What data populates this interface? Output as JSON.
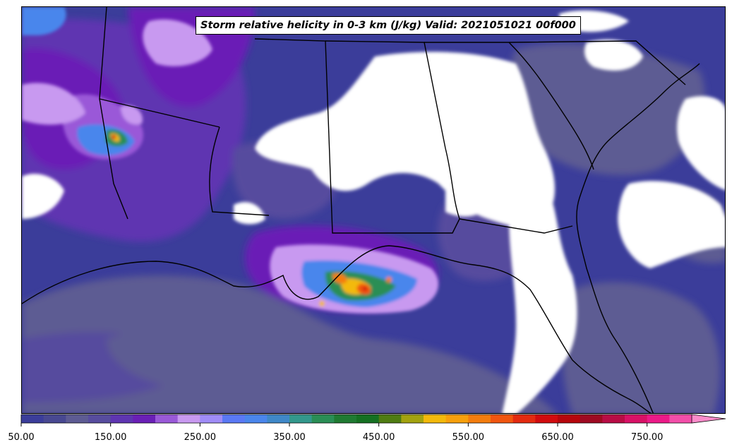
{
  "title": "Storm relative helicity in 0-3 km (J/kg) Valid: 2021051021 00f000",
  "colorbar": {
    "min": 50,
    "max": 800,
    "step": 25,
    "extend": "max",
    "tick_labels": [
      "50.00",
      "150.00",
      "250.00",
      "350.00",
      "450.00",
      "550.00",
      "650.00",
      "750.00"
    ],
    "tick_values": [
      50,
      150,
      250,
      350,
      450,
      550,
      650,
      750
    ],
    "colors": [
      "#3b3d9a",
      "#484891",
      "#5d5b93",
      "#574c9e",
      "#5e35b1",
      "#6a1fb6",
      "#9a59d8",
      "#c899f0",
      "#a08cf7",
      "#5a79f5",
      "#4a86ec",
      "#3f88c8",
      "#33988c",
      "#2a8e55",
      "#1f7a32",
      "#157022",
      "#4f7c12",
      "#a3a30f",
      "#f3b90b",
      "#f7a00c",
      "#f47d0e",
      "#f1550f",
      "#e32a10",
      "#d10b0e",
      "#b6060c",
      "#9e0a22",
      "#b80c45",
      "#d81166",
      "#ec1a88",
      "#f34ea9",
      "#fb8cca"
    ]
  },
  "map": {
    "region": "Southeastern United States and Gulf of Mexico",
    "background_color": "#ffffff",
    "coastline_color": "#000000"
  }
}
